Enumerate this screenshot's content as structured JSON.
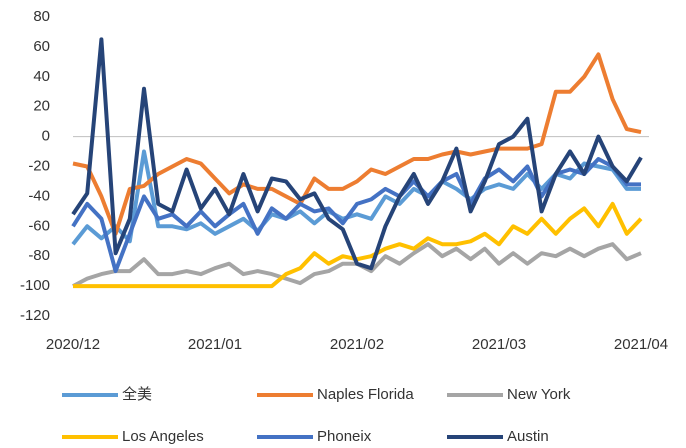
{
  "chart_data": {
    "type": "line",
    "categories": [
      "2020/12",
      null,
      null,
      null,
      null,
      null,
      null,
      null,
      null,
      null,
      "2021/01",
      null,
      null,
      null,
      null,
      null,
      null,
      null,
      null,
      null,
      "2021/02",
      null,
      null,
      null,
      null,
      null,
      null,
      null,
      null,
      null,
      "2021/03",
      null,
      null,
      null,
      null,
      null,
      null,
      null,
      null,
      null,
      "2021/04"
    ],
    "ylim": [
      -120,
      80
    ],
    "yticks": [
      -120,
      -100,
      -80,
      -60,
      -40,
      -20,
      0,
      20,
      40,
      60,
      80
    ],
    "grid": false,
    "legend": "bottom",
    "series": [
      {
        "name": "全美",
        "color": "#5b9bd5",
        "values": [
          -72,
          -60,
          -68,
          -60,
          -70,
          -10,
          -60,
          -60,
          -62,
          -58,
          -65,
          -60,
          -55,
          -63,
          -52,
          -55,
          -50,
          -58,
          -50,
          -55,
          -52,
          -55,
          -40,
          -45,
          -35,
          -40,
          -30,
          -35,
          -42,
          -35,
          -32,
          -35,
          -25,
          -35,
          -25,
          -28,
          -18,
          -20,
          -22,
          -35,
          -35
        ]
      },
      {
        "name": "Naples Florida",
        "color": "#ed7d31",
        "values": [
          -18,
          -20,
          -40,
          -65,
          -35,
          -33,
          -25,
          -20,
          -15,
          -18,
          -28,
          -38,
          -32,
          -35,
          -35,
          -40,
          -45,
          -28,
          -35,
          -35,
          -30,
          -22,
          -25,
          -20,
          -15,
          -15,
          -12,
          -10,
          -12,
          -10,
          -8,
          -8,
          -8,
          -5,
          30,
          30,
          40,
          55,
          25,
          5,
          3
        ]
      },
      {
        "name": "New York",
        "color": "#a5a5a5",
        "values": [
          -100,
          -95,
          -92,
          -90,
          -90,
          -82,
          -92,
          -92,
          -90,
          -92,
          -88,
          -85,
          -92,
          -90,
          -92,
          -95,
          -98,
          -92,
          -90,
          -85,
          -85,
          -90,
          -80,
          -85,
          -78,
          -72,
          -80,
          -75,
          -82,
          -75,
          -85,
          -78,
          -85,
          -78,
          -80,
          -75,
          -80,
          -75,
          -72,
          -82,
          -78
        ]
      },
      {
        "name": "Los Angeles",
        "color": "#ffc000",
        "values": [
          -100,
          -100,
          -100,
          -100,
          -100,
          -100,
          -100,
          -100,
          -100,
          -100,
          -100,
          -100,
          -100,
          -100,
          -100,
          -92,
          -88,
          -78,
          -85,
          -80,
          -82,
          -80,
          -75,
          -72,
          -75,
          -68,
          -72,
          -72,
          -70,
          -65,
          -72,
          -60,
          -65,
          -55,
          -65,
          -55,
          -48,
          -60,
          -45,
          -65,
          -55
        ]
      },
      {
        "name": "Phoneix",
        "color": "#4472c4",
        "values": [
          -60,
          -45,
          -55,
          -90,
          -65,
          -40,
          -55,
          -52,
          -60,
          -50,
          -60,
          -52,
          -45,
          -65,
          -48,
          -55,
          -45,
          -50,
          -48,
          -58,
          -45,
          -42,
          -35,
          -40,
          -30,
          -40,
          -30,
          -25,
          -45,
          -28,
          -22,
          -30,
          -20,
          -40,
          -25,
          -22,
          -25,
          -15,
          -20,
          -32,
          -32
        ]
      },
      {
        "name": "Austin",
        "color": "#264478",
        "values": [
          -52,
          -38,
          65,
          -78,
          -55,
          32,
          -45,
          -50,
          -22,
          -48,
          -35,
          -52,
          -25,
          -50,
          -28,
          -30,
          -42,
          -38,
          -55,
          -62,
          -85,
          -88,
          -60,
          -40,
          -25,
          -45,
          -30,
          -8,
          -50,
          -30,
          -5,
          0,
          12,
          -50,
          -25,
          -10,
          -25,
          0,
          -20,
          -30,
          -14
        ]
      }
    ]
  }
}
